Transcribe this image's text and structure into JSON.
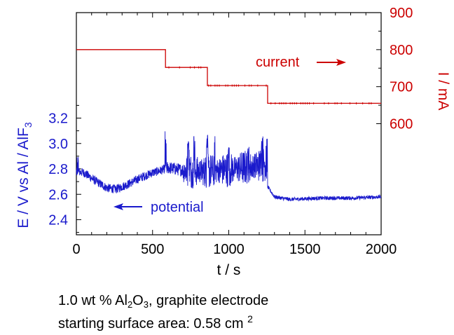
{
  "chart_data": {
    "type": "line",
    "xlabel": "t / s",
    "x_ticks": [
      "0",
      "500",
      "1000",
      "1500",
      "2000"
    ],
    "xlim": [
      0,
      2000
    ],
    "y_left": {
      "label": "E / V vs Al / AlF3",
      "label_parts": [
        "E / V vs Al / AlF",
        "3"
      ],
      "ticks": [
        "2.4",
        "2.6",
        "2.8",
        "3.0",
        "3.2"
      ],
      "color": "#1a1acc",
      "visible_range": [
        2.3,
        3.3
      ]
    },
    "y_right": {
      "label": "I / mA",
      "ticks": [
        "600",
        "700",
        "800",
        "900"
      ],
      "color": "#cc0000",
      "visible_range": [
        600,
        900
      ]
    },
    "series": [
      {
        "name": "current",
        "axis": "right",
        "color": "#cc0000",
        "style": "step",
        "points": [
          [
            0,
            800
          ],
          [
            585,
            800
          ],
          [
            585,
            752
          ],
          [
            860,
            752
          ],
          [
            860,
            703
          ],
          [
            1255,
            703
          ],
          [
            1255,
            655
          ],
          [
            2000,
            655
          ]
        ]
      },
      {
        "name": "potential",
        "axis": "left",
        "color": "#1a1acc",
        "style": "noisy",
        "baseline": [
          [
            0,
            2.78
          ],
          [
            50,
            2.77
          ],
          [
            120,
            2.71
          ],
          [
            200,
            2.65
          ],
          [
            260,
            2.64
          ],
          [
            340,
            2.68
          ],
          [
            420,
            2.73
          ],
          [
            500,
            2.77
          ],
          [
            560,
            2.79
          ],
          [
            600,
            2.81
          ],
          [
            700,
            2.79
          ],
          [
            850,
            2.78
          ],
          [
            950,
            2.79
          ],
          [
            1100,
            2.81
          ],
          [
            1250,
            2.84
          ],
          [
            1255,
            2.66
          ],
          [
            1300,
            2.58
          ],
          [
            1400,
            2.56
          ],
          [
            1600,
            2.57
          ],
          [
            1800,
            2.57
          ],
          [
            2000,
            2.58
          ]
        ],
        "spikes": [
          [
            10,
            2.9
          ],
          [
            585,
            3.1
          ],
          [
            735,
            3.05
          ],
          [
            775,
            3.09
          ],
          [
            860,
            3.08
          ],
          [
            905,
            3.06
          ],
          [
            1000,
            2.98
          ],
          [
            1130,
            3.04
          ],
          [
            1220,
            3.06
          ],
          [
            1250,
            3.05
          ]
        ]
      }
    ],
    "annotations": [
      {
        "text": "current",
        "arrow": "right",
        "color": "#cc0000"
      },
      {
        "text": "potential",
        "arrow": "left",
        "color": "#1a1acc"
      }
    ]
  },
  "caption": {
    "line1_prefix": "1.0 wt % Al",
    "line1_sub": "2",
    "line1_mid": "O",
    "line1_sub2": "3",
    "line1_suffix": ", graphite electrode",
    "line2_prefix": "starting surface area: 0.58 cm ",
    "line2_sup": "2"
  }
}
